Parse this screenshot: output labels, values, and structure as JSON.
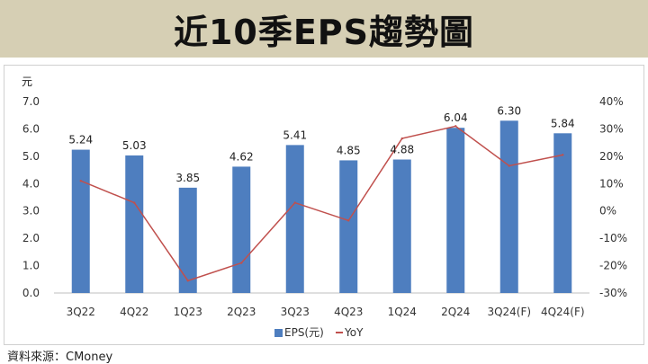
{
  "title": "近10季EPS趨勢圖",
  "source": "資料來源：CMoney",
  "chart_data": {
    "type": "bar",
    "categories": [
      "3Q22",
      "4Q22",
      "1Q23",
      "2Q23",
      "3Q23",
      "4Q23",
      "1Q24",
      "2Q24",
      "3Q24(F)",
      "4Q24(F)"
    ],
    "series": [
      {
        "name": "EPS(元)",
        "type": "bar",
        "axis": "left",
        "color": "#4e7ebf",
        "values": [
          5.24,
          5.03,
          3.85,
          4.62,
          5.41,
          4.85,
          4.88,
          6.04,
          6.3,
          5.84
        ],
        "labels": [
          "5.24",
          "5.03",
          "3.85",
          "4.62",
          "5.41",
          "4.85",
          "4.88",
          "6.04",
          "6.30",
          "5.84"
        ]
      },
      {
        "name": "YoY",
        "type": "line",
        "axis": "right",
        "color": "#c0504d",
        "values": [
          11,
          3,
          -25.5,
          -19,
          3,
          -3.5,
          26.5,
          31,
          16.5,
          20.5
        ]
      }
    ],
    "y_left": {
      "label": "元",
      "min": 0,
      "max": 7,
      "ticks": [
        "0.0",
        "1.0",
        "2.0",
        "3.0",
        "4.0",
        "5.0",
        "6.0",
        "7.0"
      ]
    },
    "y_right": {
      "min": -30,
      "max": 40,
      "ticks": [
        "-30%",
        "-20%",
        "-10%",
        "0%",
        "10%",
        "20%",
        "30%",
        "40%"
      ]
    },
    "legend_position": "bottom",
    "grid": false
  }
}
